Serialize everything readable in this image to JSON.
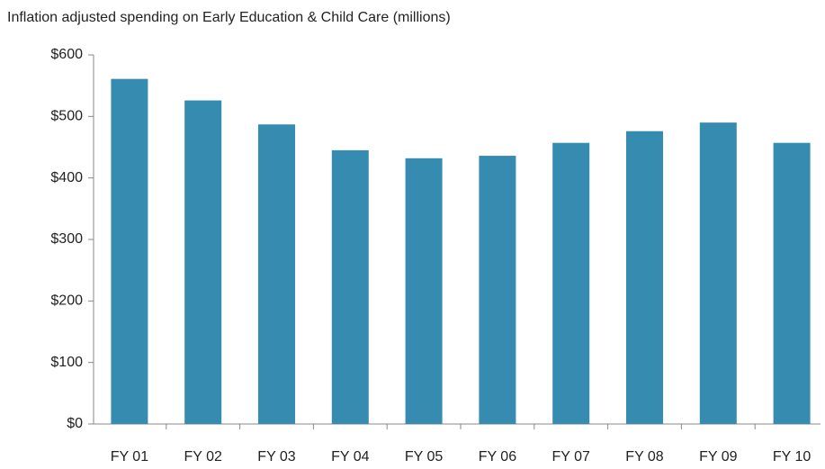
{
  "chart_data": {
    "type": "bar",
    "title": "Inflation adjusted spending on Early Education & Child Care (millions)",
    "categories": [
      "FY 01",
      "FY 02",
      "FY 03",
      "FY 04",
      "FY 05",
      "FY 06",
      "FY 07",
      "FY 08",
      "FY 09",
      "FY 10"
    ],
    "values": [
      561,
      526,
      487,
      445,
      432,
      436,
      457,
      476,
      490,
      457
    ],
    "color": "#368bb1",
    "ylim": [
      0,
      600
    ],
    "yticks": [
      {
        "value": 0,
        "label": "$0"
      },
      {
        "value": 100,
        "label": "$100"
      },
      {
        "value": 200,
        "label": "$200"
      },
      {
        "value": 300,
        "label": "$300"
      },
      {
        "value": 400,
        "label": "$400"
      },
      {
        "value": 500,
        "label": "$500"
      },
      {
        "value": 600,
        "label": "$600"
      }
    ],
    "grid": false
  }
}
